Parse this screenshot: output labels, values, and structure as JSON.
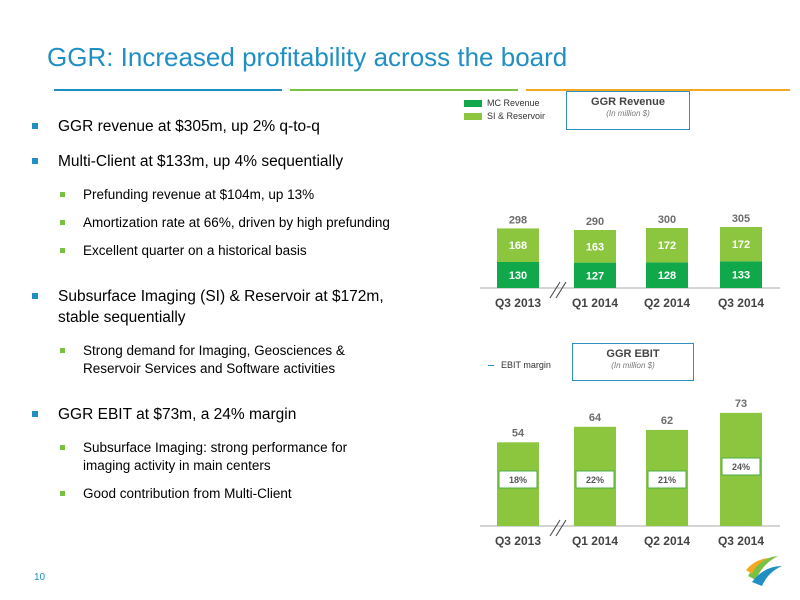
{
  "title": "GGR: Increased profitability across the board",
  "page_number": "10",
  "bullets": {
    "b1": "GGR revenue at $305m, up 2% q-to-q",
    "b2": "Multi-Client at $133m, up 4% sequentially",
    "b2_sub": [
      "Prefunding revenue at $104m, up 13%",
      "Amortization rate at 66%, driven by high prefunding",
      "Excellent quarter on a historical basis"
    ],
    "b3": "Subsurface Imaging (SI) & Reservoir at $172m, stable sequentially",
    "b3_sub": [
      "Strong demand for Imaging, Geosciences & Reservoir Services and Software activities"
    ],
    "b4": "GGR EBIT at $73m, a 24% margin",
    "b4_sub": [
      "Subsurface Imaging: strong performance for imaging activity in main centers",
      "Good contribution from Multi-Client"
    ]
  },
  "colors": {
    "title_blue": "#1f8fc4",
    "mc_green": "#10a84a",
    "si_green": "#8cc63e",
    "label_gray": "#6d6d6d",
    "margin_box_border": "#4dac47"
  },
  "chart_data": [
    {
      "type": "bar",
      "stacked": true,
      "title": "GGR Revenue",
      "subtitle": "(In million $)",
      "categories": [
        "Q3 2013",
        "Q1 2014",
        "Q2 2014",
        "Q3 2014"
      ],
      "series": [
        {
          "name": "MC Revenue",
          "values": [
            130,
            127,
            128,
            133
          ]
        },
        {
          "name": "SI & Reservoir",
          "values": [
            168,
            163,
            172,
            172
          ]
        }
      ],
      "totals": [
        298,
        290,
        300,
        305
      ],
      "axis_break_between": [
        "Q3 2013",
        "Q1 2014"
      ],
      "legend": "top-left"
    },
    {
      "type": "bar",
      "title": "GGR EBIT",
      "subtitle": "(In million $)",
      "categories": [
        "Q3 2013",
        "Q1 2014",
        "Q2 2014",
        "Q3 2014"
      ],
      "values": [
        54,
        64,
        62,
        73
      ],
      "margin_label": "EBIT margin",
      "margins": [
        "18%",
        "22%",
        "21%",
        "24%"
      ],
      "axis_break_between": [
        "Q3 2013",
        "Q1 2014"
      ],
      "legend": "top-left"
    }
  ]
}
